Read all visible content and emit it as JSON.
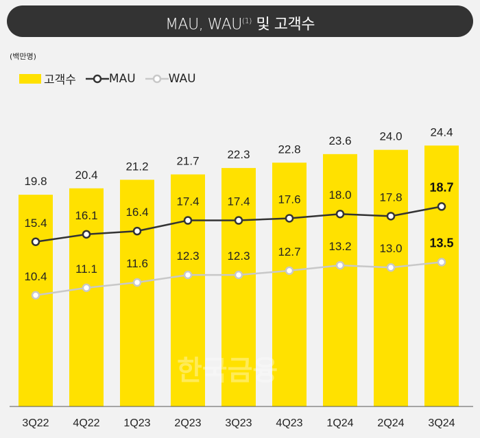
{
  "chart_data": {
    "type": "bar",
    "title": "MAU, WAU",
    "title_sup": "(1)",
    "title_suffix": " 및 고객수",
    "unit_label": "(백만명)",
    "categories": [
      "3Q22",
      "4Q22",
      "1Q23",
      "2Q23",
      "3Q23",
      "4Q23",
      "1Q24",
      "2Q24",
      "3Q24"
    ],
    "series": [
      {
        "name": "고객수",
        "type": "bar",
        "color": "#FFE100",
        "values": [
          19.8,
          20.4,
          21.2,
          21.7,
          22.3,
          22.8,
          23.6,
          24.0,
          24.4
        ]
      },
      {
        "name": "MAU",
        "type": "line",
        "color": "#333333",
        "values": [
          15.4,
          16.1,
          16.4,
          17.4,
          17.4,
          17.6,
          18.0,
          17.8,
          18.7
        ]
      },
      {
        "name": "WAU",
        "type": "line",
        "color": "#c8c8c8",
        "values": [
          10.4,
          11.1,
          11.6,
          12.3,
          12.3,
          12.7,
          13.2,
          13.0,
          13.5
        ]
      }
    ],
    "ylim": [
      0,
      38
    ],
    "grid": false,
    "legend_position": "top-left",
    "highlight_last_line_labels": true
  },
  "watermark": "한국금융"
}
